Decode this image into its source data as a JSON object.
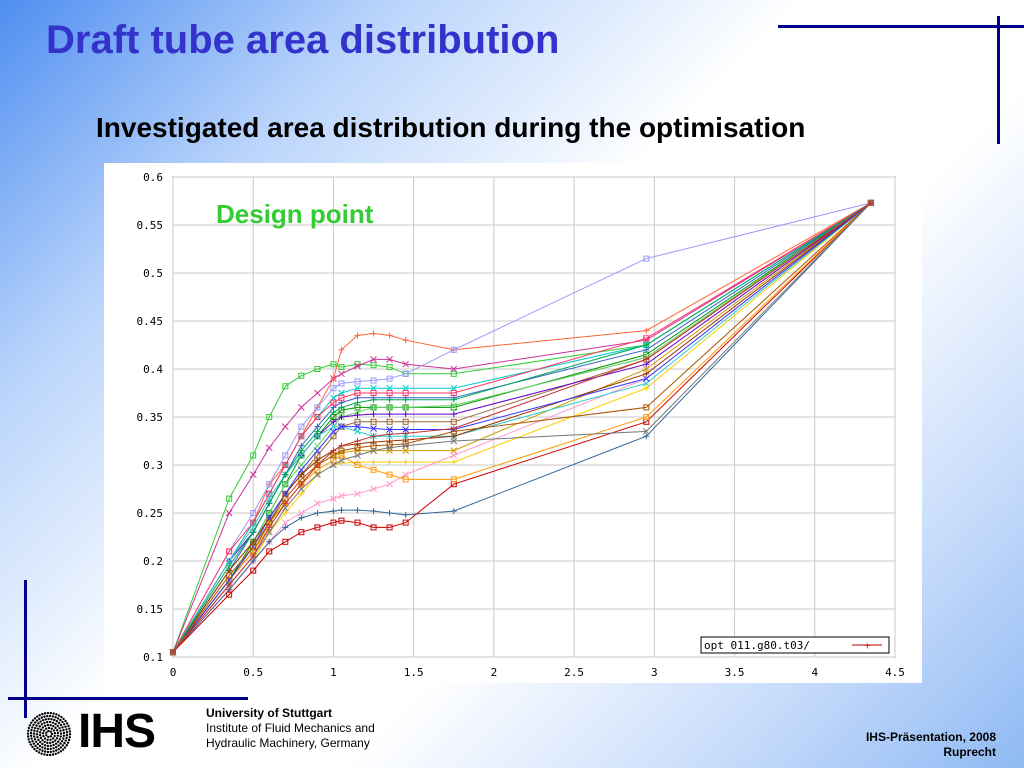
{
  "slide": {
    "title": "Draft tube area distribution",
    "subtitle": "Investigated area distribution during the optimisation"
  },
  "footer": {
    "logo_text": "IHS",
    "university": "University of Stuttgart",
    "institute_line1": "Institute of Fluid Mechanics and",
    "institute_line2": "Hydraulic Machinery, Germany",
    "presentation": "IHS-Präsentation, 2008",
    "author": "Ruprecht"
  },
  "colors": {
    "title": "#3333cc",
    "rules": "#000088",
    "annotation": "#33cc33",
    "highlight_series": "#cc3333"
  },
  "chart_data": {
    "type": "line",
    "title": "",
    "xlabel": "",
    "ylabel": "",
    "xlim": [
      0,
      4.5
    ],
    "ylim": [
      0.1,
      0.6
    ],
    "xticks": [
      "0",
      "0.5",
      "1",
      "1.5",
      "2",
      "2.5",
      "3",
      "3.5",
      "4",
      "4.5"
    ],
    "yticks": [
      "0.1",
      "0.15",
      "0.2",
      "0.25",
      "0.3",
      "0.35",
      "0.4",
      "0.45",
      "0.5",
      "0.55",
      "0.6"
    ],
    "grid": true,
    "legend_position": "bottom-right",
    "legend_entry": "opt 011.g80.t03/",
    "annotation": "Design point",
    "x": [
      0,
      0.35,
      0.5,
      0.6,
      0.7,
      0.8,
      0.9,
      1.0,
      1.05,
      1.15,
      1.25,
      1.35,
      1.45,
      1.75,
      2.95,
      4.35
    ],
    "series": [
      {
        "color": "#33cc33",
        "values": [
          0.105,
          0.265,
          0.31,
          0.35,
          0.382,
          0.393,
          0.4,
          0.405,
          0.402,
          0.405,
          0.404,
          0.402,
          0.395,
          0.395,
          0.425,
          0.573
        ]
      },
      {
        "color": "#cc3399",
        "values": [
          0.105,
          0.25,
          0.29,
          0.318,
          0.34,
          0.36,
          0.375,
          0.39,
          0.395,
          0.403,
          0.41,
          0.41,
          0.405,
          0.4,
          0.43,
          0.573
        ]
      },
      {
        "color": "#ff6633",
        "values": [
          0.105,
          0.2,
          0.24,
          0.28,
          0.3,
          0.33,
          0.36,
          0.39,
          0.42,
          0.435,
          0.437,
          0.435,
          0.43,
          0.42,
          0.44,
          0.573
        ]
      },
      {
        "color": "#9999ff",
        "values": [
          0.105,
          0.21,
          0.25,
          0.28,
          0.31,
          0.34,
          0.36,
          0.38,
          0.385,
          0.387,
          0.388,
          0.39,
          0.395,
          0.42,
          0.515,
          0.573
        ]
      },
      {
        "color": "#00cccc",
        "values": [
          0.105,
          0.2,
          0.24,
          0.27,
          0.3,
          0.33,
          0.35,
          0.37,
          0.375,
          0.38,
          0.38,
          0.38,
          0.38,
          0.38,
          0.425,
          0.573
        ]
      },
      {
        "color": "#3366cc",
        "values": [
          0.105,
          0.19,
          0.23,
          0.26,
          0.29,
          0.32,
          0.34,
          0.36,
          0.365,
          0.37,
          0.37,
          0.37,
          0.37,
          0.37,
          0.42,
          0.573
        ]
      },
      {
        "color": "#009900",
        "values": [
          0.105,
          0.18,
          0.22,
          0.25,
          0.28,
          0.31,
          0.33,
          0.35,
          0.357,
          0.36,
          0.36,
          0.36,
          0.36,
          0.36,
          0.415,
          0.573
        ]
      },
      {
        "color": "#cc9900",
        "values": [
          0.105,
          0.18,
          0.21,
          0.24,
          0.26,
          0.28,
          0.3,
          0.31,
          0.313,
          0.315,
          0.315,
          0.315,
          0.315,
          0.315,
          0.4,
          0.573
        ]
      },
      {
        "color": "#ffcc00",
        "values": [
          0.105,
          0.17,
          0.2,
          0.23,
          0.25,
          0.27,
          0.29,
          0.3,
          0.302,
          0.303,
          0.303,
          0.303,
          0.303,
          0.303,
          0.38,
          0.573
        ]
      },
      {
        "color": "#996633",
        "values": [
          0.105,
          0.18,
          0.21,
          0.24,
          0.27,
          0.29,
          0.31,
          0.33,
          0.34,
          0.345,
          0.345,
          0.345,
          0.345,
          0.345,
          0.41,
          0.573
        ]
      },
      {
        "color": "#ff99cc",
        "values": [
          0.105,
          0.17,
          0.2,
          0.22,
          0.24,
          0.25,
          0.26,
          0.265,
          0.268,
          0.27,
          0.275,
          0.28,
          0.29,
          0.31,
          0.39,
          0.573
        ]
      },
      {
        "color": "#336699",
        "values": [
          0.105,
          0.17,
          0.2,
          0.22,
          0.235,
          0.245,
          0.25,
          0.252,
          0.253,
          0.253,
          0.252,
          0.25,
          0.248,
          0.252,
          0.33,
          0.573
        ]
      },
      {
        "color": "#cc0000",
        "values": [
          0.105,
          0.165,
          0.19,
          0.21,
          0.22,
          0.23,
          0.235,
          0.24,
          0.242,
          0.24,
          0.235,
          0.235,
          0.24,
          0.28,
          0.345,
          0.573
        ]
      },
      {
        "color": "#66cc66",
        "values": [
          0.105,
          0.19,
          0.22,
          0.25,
          0.28,
          0.3,
          0.32,
          0.34,
          0.35,
          0.355,
          0.36,
          0.36,
          0.36,
          0.362,
          0.412,
          0.573
        ]
      },
      {
        "color": "#6600cc",
        "values": [
          0.105,
          0.2,
          0.23,
          0.26,
          0.29,
          0.31,
          0.33,
          0.345,
          0.35,
          0.352,
          0.353,
          0.353,
          0.353,
          0.353,
          0.405,
          0.573
        ]
      },
      {
        "color": "#ff3366",
        "values": [
          0.105,
          0.21,
          0.24,
          0.27,
          0.3,
          0.33,
          0.35,
          0.365,
          0.37,
          0.375,
          0.375,
          0.375,
          0.375,
          0.375,
          0.432,
          0.573
        ]
      },
      {
        "color": "#33cccc",
        "values": [
          0.105,
          0.2,
          0.235,
          0.265,
          0.29,
          0.31,
          0.33,
          0.34,
          0.34,
          0.335,
          0.33,
          0.33,
          0.33,
          0.33,
          0.385,
          0.573
        ]
      },
      {
        "color": "#993300",
        "values": [
          0.105,
          0.19,
          0.22,
          0.245,
          0.27,
          0.29,
          0.305,
          0.315,
          0.32,
          0.322,
          0.324,
          0.325,
          0.326,
          0.33,
          0.395,
          0.573
        ]
      },
      {
        "color": "#ff9900",
        "values": [
          0.105,
          0.18,
          0.21,
          0.235,
          0.26,
          0.28,
          0.295,
          0.305,
          0.31,
          0.3,
          0.295,
          0.29,
          0.285,
          0.285,
          0.35,
          0.573
        ]
      },
      {
        "color": "#3333ff",
        "values": [
          0.105,
          0.18,
          0.215,
          0.245,
          0.27,
          0.295,
          0.315,
          0.335,
          0.34,
          0.34,
          0.338,
          0.337,
          0.337,
          0.337,
          0.39,
          0.573
        ]
      },
      {
        "color": "#00aa55",
        "values": [
          0.105,
          0.195,
          0.23,
          0.26,
          0.29,
          0.315,
          0.335,
          0.355,
          0.36,
          0.365,
          0.368,
          0.368,
          0.368,
          0.368,
          0.425,
          0.573
        ]
      },
      {
        "color": "#aa5500",
        "values": [
          0.105,
          0.185,
          0.215,
          0.24,
          0.265,
          0.285,
          0.3,
          0.31,
          0.315,
          0.318,
          0.32,
          0.321,
          0.322,
          0.335,
          0.36,
          0.573
        ]
      },
      {
        "color": "#777777",
        "values": [
          0.105,
          0.175,
          0.205,
          0.23,
          0.255,
          0.275,
          0.29,
          0.3,
          0.305,
          0.31,
          0.315,
          0.318,
          0.32,
          0.325,
          0.335,
          0.573
        ]
      },
      {
        "color": "#cc3333",
        "values": [
          0.105,
          0.175,
          0.205,
          0.235,
          0.26,
          0.28,
          0.3,
          0.315,
          0.32,
          0.325,
          0.33,
          0.332,
          0.333,
          0.338,
          0.41,
          0.573
        ]
      }
    ]
  }
}
